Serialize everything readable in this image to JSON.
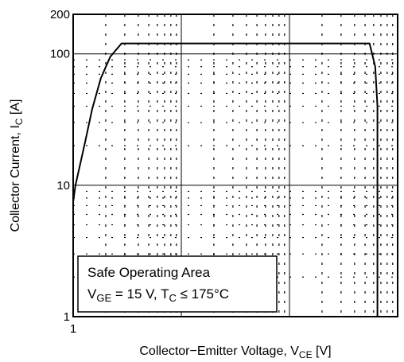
{
  "chart_data": {
    "type": "line",
    "title": "",
    "xlabel": {
      "main": "Collector−Emitter Voltage, V",
      "sub": "CE",
      "unit": " [V]"
    },
    "ylabel": {
      "main": "Collector Current, I",
      "sub": "C",
      "unit": " [A]"
    },
    "xscale": "log",
    "yscale": "log",
    "xlim": [
      1,
      1000
    ],
    "ylim": [
      1,
      200
    ],
    "xticks": [
      {
        "value": 1,
        "label": "1"
      }
    ],
    "yticks": [
      {
        "value": 1,
        "label": "1"
      },
      {
        "value": 10,
        "label": "10"
      },
      {
        "value": 100,
        "label": "100"
      },
      {
        "value": 200,
        "label": "200"
      }
    ],
    "grid": true,
    "series": [
      {
        "name": "",
        "color": "#000000",
        "points": [
          {
            "x": 1.0,
            "y": 7.5
          },
          {
            "x": 1.05,
            "y": 10
          },
          {
            "x": 1.15,
            "y": 14
          },
          {
            "x": 1.3,
            "y": 22
          },
          {
            "x": 1.5,
            "y": 38
          },
          {
            "x": 1.8,
            "y": 65
          },
          {
            "x": 2.2,
            "y": 95
          },
          {
            "x": 2.8,
            "y": 120
          },
          {
            "x": 550,
            "y": 120
          },
          {
            "x": 620,
            "y": 80
          },
          {
            "x": 650,
            "y": 40
          },
          {
            "x": 650,
            "y": 1
          }
        ]
      }
    ],
    "annotation": {
      "line1": "Safe Operating Area",
      "line2_parts": [
        {
          "t": "V"
        },
        {
          "t": "GE",
          "sub": true
        },
        {
          "t": " = 15 V, T"
        },
        {
          "t": "C",
          "sub": true
        },
        {
          "t": " ≤ 175°C"
        }
      ]
    }
  }
}
